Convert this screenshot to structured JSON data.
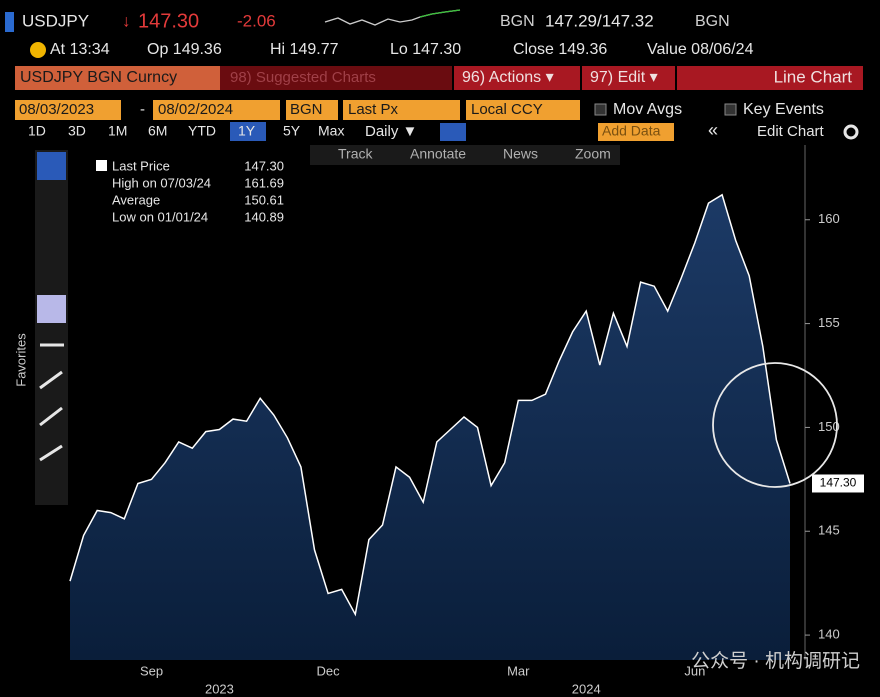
{
  "header": {
    "ticker": "USDJPY",
    "arrow": "↓",
    "last": "147.30",
    "change": "-2.06",
    "source": "BGN",
    "bid_ask": "147.29/147.32",
    "source2": "BGN",
    "time": "At 13:34",
    "open": "Op 149.36",
    "high": "Hi 149.77",
    "low": "Lo 147.30",
    "close": "Close 149.36",
    "value_date": "Value 08/06/24"
  },
  "menu": {
    "security": "USDJPY BGN Curncy",
    "suggested": "98) Suggested Charts",
    "actions": "96) Actions ▾",
    "edit": "97) Edit ▾",
    "chart_type": "Line Chart"
  },
  "settings": {
    "start": "08/03/2023",
    "dash": "-",
    "end": "08/02/2024",
    "source": "BGN",
    "field": "Last Px",
    "currency": "Local CCY",
    "mov_avgs": "Mov Avgs",
    "key_events": "Key Events"
  },
  "periods": [
    "1D",
    "3D",
    "1M",
    "6M",
    "YTD",
    "1Y",
    "5Y",
    "Max"
  ],
  "toolbar": {
    "frequency": "Daily ▼",
    "add_data": "Add Data",
    "collapse": "«",
    "edit_chart": "Edit Chart",
    "favorites": "Favorites"
  },
  "tools": [
    "Track",
    "Annotate",
    "News",
    "Zoom"
  ],
  "legend": [
    {
      "label": "Last Price",
      "value": "147.30"
    },
    {
      "label": "High on 07/03/24",
      "value": "161.69"
    },
    {
      "label": "Average",
      "value": "150.61"
    },
    {
      "label": "Low on 01/01/24",
      "value": "140.89"
    }
  ],
  "watermark": "公众号 · 机构调研记",
  "chart_data": {
    "type": "line",
    "categories": [
      null,
      null,
      null,
      null,
      null,
      null,
      "Sep",
      null,
      null,
      null,
      null,
      null,
      null,
      null,
      null,
      null,
      null,
      null,
      null,
      "Dec",
      null,
      null,
      null,
      null,
      null,
      null,
      null,
      null,
      null,
      null,
      null,
      null,
      null,
      "Mar",
      null,
      null,
      null,
      null,
      null,
      null,
      null,
      null,
      null,
      null,
      null,
      null,
      "Jun",
      null,
      null,
      null,
      null,
      null,
      null,
      null
    ],
    "year_categories": [
      null,
      null,
      null,
      null,
      null,
      null,
      null,
      null,
      null,
      null,
      null,
      "2023",
      null,
      null,
      null,
      null,
      null,
      null,
      null,
      null,
      null,
      null,
      null,
      null,
      null,
      null,
      null,
      null,
      null,
      null,
      null,
      null,
      null,
      null,
      null,
      null,
      null,
      null,
      "2024",
      null,
      null,
      null,
      null,
      null,
      null,
      null,
      null,
      null,
      null,
      null,
      null,
      null,
      null,
      null
    ],
    "series": [
      {
        "name": "Last Price",
        "color": "#ffffff",
        "values": [
          142.6,
          144.8,
          146.0,
          145.9,
          145.6,
          147.3,
          147.5,
          148.3,
          149.3,
          149.0,
          149.8,
          149.9,
          150.4,
          150.3,
          151.4,
          150.6,
          149.5,
          148.1,
          144.1,
          142.0,
          142.2,
          141.0,
          144.6,
          145.3,
          148.1,
          147.6,
          146.4,
          149.3,
          149.9,
          150.5,
          150.0,
          147.2,
          148.3,
          151.3,
          151.3,
          151.6,
          153.2,
          154.6,
          155.6,
          153.0,
          155.5,
          153.9,
          157.0,
          156.8,
          155.6,
          157.2,
          158.9,
          160.8,
          161.2,
          159.0,
          157.3,
          153.9,
          149.4,
          147.3
        ],
        "value_labels": [
          null,
          null,
          null,
          null,
          null,
          null,
          null,
          null,
          null,
          null,
          null,
          null,
          null,
          null,
          null,
          null,
          null,
          null,
          null,
          null,
          null,
          null,
          null,
          null,
          null,
          null,
          null,
          null,
          null,
          null,
          null,
          null,
          null,
          null,
          null,
          null,
          null,
          null,
          null,
          null,
          null,
          null,
          null,
          null,
          null,
          null,
          null,
          null,
          null,
          null,
          null,
          null,
          null,
          "147.30"
        ]
      }
    ],
    "ylim": [
      138.8,
      163.6
    ],
    "yticks": [
      140,
      145,
      150,
      155,
      160
    ]
  }
}
